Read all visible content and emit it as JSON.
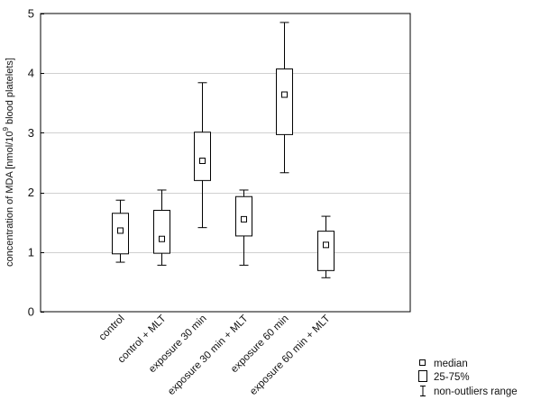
{
  "chart_data": {
    "type": "boxplot",
    "title": "",
    "xlabel": "",
    "ylabel": "concentration of MDA [nmol/10",
    "ylabel_superscript": "9",
    "ylabel_suffix": " blood platelets]",
    "ylim": [
      0,
      5
    ],
    "yticks": [
      "0",
      "1",
      "2",
      "3",
      "4",
      "5"
    ],
    "grid": "horizontal",
    "categories": [
      "control",
      "control + MLT",
      "exposure 30 min",
      "exposure 30 min + MLT",
      "exposure 60 min",
      "exposure 60 min + MLT"
    ],
    "boxes": [
      {
        "name": "control",
        "median": 1.36,
        "q1": 0.97,
        "q3": 1.65,
        "min": 0.83,
        "max": 1.87
      },
      {
        "name": "control + MLT",
        "median": 1.22,
        "q1": 0.98,
        "q3": 1.7,
        "min": 0.78,
        "max": 2.04
      },
      {
        "name": "exposure 30 min",
        "median": 2.53,
        "q1": 2.2,
        "q3": 3.01,
        "min": 1.41,
        "max": 3.84
      },
      {
        "name": "exposure 30 min + MLT",
        "median": 1.55,
        "q1": 1.27,
        "q3": 1.93,
        "min": 0.78,
        "max": 2.04
      },
      {
        "name": "exposure 60 min",
        "median": 3.64,
        "q1": 2.97,
        "q3": 4.07,
        "min": 2.33,
        "max": 4.85
      },
      {
        "name": "exposure 60 min + MLT",
        "median": 1.12,
        "q1": 0.69,
        "q3": 1.35,
        "min": 0.57,
        "max": 1.6
      }
    ],
    "legend": {
      "position": "bottom-right",
      "entries": [
        {
          "symbol": "small-square",
          "label": "median"
        },
        {
          "symbol": "box",
          "label": "25-75%"
        },
        {
          "symbol": "whisker",
          "label": "non-outliers range"
        }
      ]
    }
  }
}
